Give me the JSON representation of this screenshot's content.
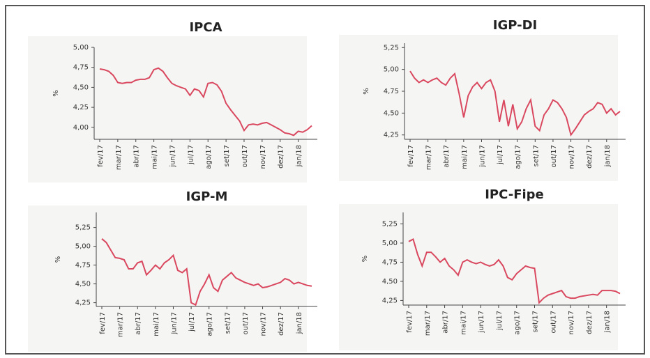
{
  "chart_data": [
    {
      "type": "line",
      "title": "IPCA",
      "y_label": "%",
      "color": "#d9485f",
      "categories": [
        "fev/17",
        null,
        null,
        null,
        "mar/17",
        null,
        null,
        null,
        "abr/17",
        null,
        null,
        null,
        "mai/17",
        null,
        null,
        null,
        "jun/17",
        null,
        null,
        null,
        "jul/17",
        null,
        null,
        null,
        "ago/17",
        null,
        null,
        null,
        "set/17",
        null,
        null,
        null,
        "out/17",
        null,
        null,
        null,
        "nov/17",
        null,
        null,
        null,
        "dez/17",
        null,
        null,
        null,
        "jan/18",
        null,
        null,
        null
      ],
      "values": [
        4.73,
        4.72,
        4.7,
        4.65,
        4.56,
        4.55,
        4.56,
        4.56,
        4.59,
        4.6,
        4.6,
        4.62,
        4.72,
        4.74,
        4.7,
        4.62,
        4.55,
        4.52,
        4.5,
        4.48,
        4.4,
        4.48,
        4.46,
        4.38,
        4.55,
        4.56,
        4.53,
        4.45,
        4.3,
        4.22,
        4.15,
        4.08,
        3.96,
        4.03,
        4.04,
        4.03,
        4.05,
        4.06,
        4.03,
        4.0,
        3.97,
        3.93,
        3.92,
        3.9,
        3.95,
        3.94,
        3.97,
        4.02
      ],
      "ylim": [
        3.85,
        5.0
      ],
      "yticks": [
        {
          "value": 4.0,
          "label": "4,00"
        },
        {
          "value": 4.25,
          "label": "4,25"
        },
        {
          "value": 4.5,
          "label": "4,50"
        },
        {
          "value": 4.75,
          "label": "4,75"
        },
        {
          "value": 5.0,
          "label": "5,00"
        }
      ]
    },
    {
      "type": "line",
      "title": "IGP-DI",
      "y_label": "%",
      "color": "#d9485f",
      "categories": [
        "fev/17",
        null,
        null,
        null,
        "mar/17",
        null,
        null,
        null,
        "abr/17",
        null,
        null,
        null,
        "mai/17",
        null,
        null,
        null,
        "jun/17",
        null,
        null,
        null,
        "jul/17",
        null,
        null,
        null,
        "ago/17",
        null,
        null,
        null,
        "set/17",
        null,
        null,
        null,
        "out/17",
        null,
        null,
        null,
        "nov/17",
        null,
        null,
        null,
        "dez/17",
        null,
        null,
        null,
        "jan/18",
        null,
        null,
        null
      ],
      "values": [
        4.98,
        4.9,
        4.85,
        4.88,
        4.85,
        4.88,
        4.9,
        4.85,
        4.82,
        4.9,
        4.95,
        4.72,
        4.45,
        4.7,
        4.8,
        4.85,
        4.78,
        4.85,
        4.88,
        4.75,
        4.4,
        4.65,
        4.35,
        4.6,
        4.32,
        4.4,
        4.55,
        4.65,
        4.35,
        4.3,
        4.48,
        4.55,
        4.65,
        4.62,
        4.55,
        4.45,
        4.25,
        4.32,
        4.4,
        4.48,
        4.52,
        4.55,
        4.62,
        4.6,
        4.5,
        4.55,
        4.48,
        4.52
      ],
      "ylim": [
        4.2,
        5.3
      ],
      "yticks": [
        {
          "value": 4.25,
          "label": "4,25"
        },
        {
          "value": 4.5,
          "label": "4,50"
        },
        {
          "value": 4.75,
          "label": "4,75"
        },
        {
          "value": 5.0,
          "label": "5,00"
        },
        {
          "value": 5.25,
          "label": "5,25"
        }
      ]
    },
    {
      "type": "line",
      "title": "IGP-M",
      "y_label": "%",
      "color": "#d9485f",
      "categories": [
        "fev/17",
        null,
        null,
        null,
        "mar/17",
        null,
        null,
        null,
        "abr/17",
        null,
        null,
        null,
        "mai/17",
        null,
        null,
        null,
        "jun/17",
        null,
        null,
        null,
        "jul/17",
        null,
        null,
        null,
        "ago/17",
        null,
        null,
        null,
        "set/17",
        null,
        null,
        null,
        "out/17",
        null,
        null,
        null,
        "nov/17",
        null,
        null,
        null,
        "dez/17",
        null,
        null,
        null,
        "jan/18",
        null,
        null,
        null
      ],
      "values": [
        5.1,
        5.05,
        4.95,
        4.85,
        4.84,
        4.82,
        4.7,
        4.7,
        4.78,
        4.8,
        4.62,
        4.68,
        4.75,
        4.7,
        4.78,
        4.82,
        4.88,
        4.68,
        4.65,
        4.7,
        4.25,
        4.22,
        4.4,
        4.5,
        4.62,
        4.45,
        4.4,
        4.55,
        4.6,
        4.65,
        4.58,
        4.55,
        4.52,
        4.5,
        4.48,
        4.5,
        4.45,
        4.46,
        4.48,
        4.5,
        4.52,
        4.57,
        4.55,
        4.5,
        4.52,
        4.5,
        4.48,
        4.47
      ],
      "ylim": [
        4.2,
        5.45
      ],
      "yticks": [
        {
          "value": 4.25,
          "label": "4,25"
        },
        {
          "value": 4.5,
          "label": "4,50"
        },
        {
          "value": 4.75,
          "label": "4,75"
        },
        {
          "value": 5.0,
          "label": "5,00"
        },
        {
          "value": 5.25,
          "label": "5,25"
        }
      ]
    },
    {
      "type": "line",
      "title": "IPC-Fipe",
      "y_label": "%",
      "color": "#d9485f",
      "categories": [
        "fev/17",
        null,
        null,
        null,
        "mar/17",
        null,
        null,
        null,
        "abr/17",
        null,
        null,
        null,
        "mai/17",
        null,
        null,
        null,
        "jun/17",
        null,
        null,
        null,
        "jul/17",
        null,
        null,
        null,
        "ago/17",
        null,
        null,
        null,
        "set/17",
        null,
        null,
        null,
        "out/17",
        null,
        null,
        null,
        "nov/17",
        null,
        null,
        null,
        "dez/17",
        null,
        null,
        null,
        "jan/18",
        null,
        null,
        null
      ],
      "values": [
        5.02,
        5.05,
        4.85,
        4.7,
        4.88,
        4.88,
        4.82,
        4.75,
        4.8,
        4.7,
        4.65,
        4.58,
        4.75,
        4.78,
        4.75,
        4.73,
        4.75,
        4.72,
        4.7,
        4.72,
        4.78,
        4.7,
        4.55,
        4.52,
        4.6,
        4.65,
        4.7,
        4.68,
        4.67,
        4.22,
        4.28,
        4.32,
        4.34,
        4.36,
        4.38,
        4.3,
        4.28,
        4.28,
        4.3,
        4.31,
        4.32,
        4.33,
        4.32,
        4.38,
        4.38,
        4.38,
        4.37,
        4.34
      ],
      "ylim": [
        4.19,
        5.4
      ],
      "yticks": [
        {
          "value": 4.25,
          "label": "4,25"
        },
        {
          "value": 4.5,
          "label": "4,50"
        },
        {
          "value": 4.75,
          "label": "4,75"
        },
        {
          "value": 5.0,
          "label": "5,00"
        },
        {
          "value": 5.25,
          "label": "5,25"
        }
      ]
    }
  ]
}
